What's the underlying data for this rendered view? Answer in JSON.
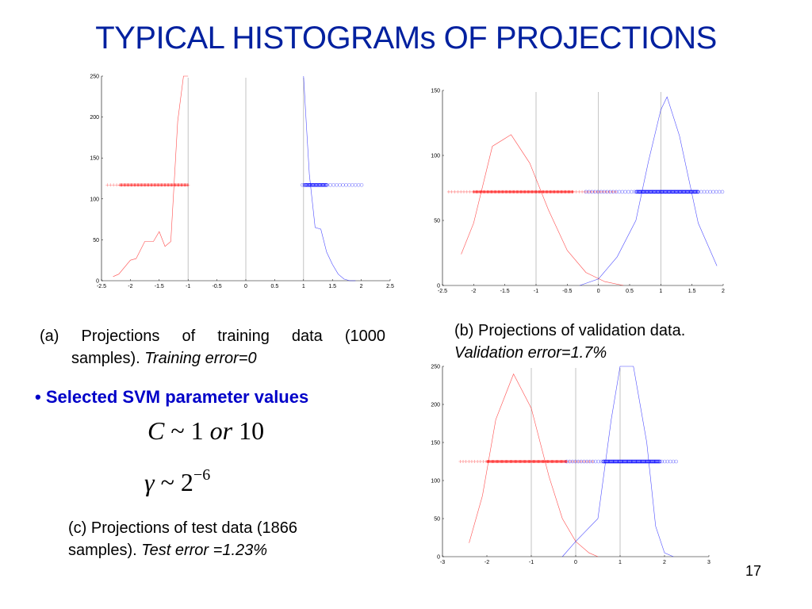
{
  "title": "TYPICAL HISTOGRAMs OF PROJECTIONS",
  "captions": {
    "a_line1": "(a) Projections of training data (1000",
    "a_line2_plain": "samples). ",
    "a_line2_italic": "Training error=0",
    "b_line1": "(b) Projections of validation data.",
    "b_line2_italic": "Validation error=1.7%",
    "c_line1": "(c) Projections of test data (1866",
    "c_line2_plain": "samples). ",
    "c_line2_italic": "Test error =1.23%"
  },
  "bullet": {
    "symbol": "•",
    "text": "Selected SVM parameter values"
  },
  "formulas": {
    "C_var": "C",
    "C_rest": " ~ 1 ",
    "C_or": "or",
    "C_ten": " 10",
    "gamma_var": "γ",
    "gamma_rest": " ~ 2",
    "gamma_exp": "−6"
  },
  "page_number": "17",
  "colors": {
    "title": "#00209f",
    "bullet": "#0000c8",
    "class_neg": "#ff0000",
    "class_pos": "#0000ff",
    "reference_lines": "#b4b4b4"
  },
  "chart_data": [
    {
      "id": "a",
      "type": "line",
      "xlim": [
        -2.5,
        2.5
      ],
      "ylim": [
        0,
        250
      ],
      "xticks": [
        -2.5,
        -2,
        -1.5,
        -1,
        -0.5,
        0,
        0.5,
        1,
        1.5,
        2,
        2.5
      ],
      "yticks": [
        0,
        50,
        100,
        150,
        200,
        250
      ],
      "vlines": [
        -1,
        0,
        1
      ],
      "points_y": 117,
      "series": [
        {
          "color": "#ff0000",
          "x": [
            -2.3,
            -2.2,
            -2.0,
            -1.9,
            -1.75,
            -1.6,
            -1.5,
            -1.4,
            -1.3,
            -1.18,
            -1.08,
            -1.0
          ],
          "y": [
            5,
            8,
            25,
            27,
            48,
            48,
            60,
            42,
            48,
            195,
            250,
            250
          ]
        },
        {
          "color": "#0000ff",
          "x": [
            1.0,
            1.05,
            1.1,
            1.2,
            1.3,
            1.4,
            1.5,
            1.6,
            1.7,
            1.8,
            1.9
          ],
          "y": [
            250,
            190,
            130,
            65,
            63,
            35,
            20,
            8,
            2,
            0,
            0
          ]
        }
      ],
      "scatter": [
        {
          "color": "#ff0000",
          "marker": "plus",
          "from": -2.4,
          "to": -0.98,
          "dense_from": -2.2,
          "dense_to": -1.0
        },
        {
          "color": "#0000ff",
          "marker": "circle",
          "from": 0.98,
          "to": 2.05,
          "dense_from": 1.0,
          "dense_to": 1.4
        }
      ]
    },
    {
      "id": "b",
      "type": "line",
      "xlim": [
        -2.5,
        2
      ],
      "ylim": [
        0,
        150
      ],
      "xticks": [
        -2.5,
        -2,
        -1.5,
        -1,
        -0.5,
        0,
        0.5,
        1,
        1.5,
        2
      ],
      "yticks": [
        0,
        50,
        100,
        150
      ],
      "vlines": [
        -1,
        0,
        1
      ],
      "points_y": 72,
      "series": [
        {
          "color": "#ff0000",
          "x": [
            -2.2,
            -2.0,
            -1.7,
            -1.4,
            -1.1,
            -0.8,
            -0.5,
            -0.2,
            0.1,
            0.4
          ],
          "y": [
            24,
            48,
            107,
            116,
            94,
            58,
            27,
            10,
            3,
            0
          ]
        },
        {
          "color": "#0000ff",
          "x": [
            -0.3,
            0.0,
            0.3,
            0.6,
            0.8,
            1.0,
            1.1,
            1.3,
            1.6,
            1.9
          ],
          "y": [
            0,
            5,
            22,
            50,
            95,
            135,
            145,
            115,
            48,
            15
          ]
        }
      ],
      "scatter": [
        {
          "color": "#ff0000",
          "marker": "plus",
          "from": -2.4,
          "to": 0.3,
          "dense_from": -2.0,
          "dense_to": -0.4
        },
        {
          "color": "#0000ff",
          "marker": "circle",
          "from": -0.2,
          "to": 2.0,
          "dense_from": 0.6,
          "dense_to": 1.6
        }
      ]
    },
    {
      "id": "c",
      "type": "line",
      "xlim": [
        -3,
        3
      ],
      "ylim": [
        0,
        250
      ],
      "xticks": [
        -3,
        -2,
        -1,
        0,
        1,
        2,
        3
      ],
      "yticks": [
        0,
        50,
        100,
        150,
        200,
        250
      ],
      "vlines": [
        -1,
        0,
        1
      ],
      "points_y": 125,
      "series": [
        {
          "color": "#ff0000",
          "x": [
            -2.4,
            -2.1,
            -1.8,
            -1.4,
            -1.0,
            -0.6,
            -0.3,
            0.0,
            0.3,
            0.5
          ],
          "y": [
            18,
            80,
            180,
            240,
            195,
            105,
            50,
            20,
            5,
            0
          ]
        },
        {
          "color": "#0000ff",
          "x": [
            -0.3,
            0.0,
            0.5,
            0.8,
            1.0,
            1.3,
            1.6,
            1.8,
            2.0,
            2.2
          ],
          "y": [
            0,
            20,
            50,
            180,
            250,
            250,
            150,
            40,
            5,
            0
          ]
        }
      ],
      "scatter": [
        {
          "color": "#ff0000",
          "marker": "plus",
          "from": -2.6,
          "to": 0.4,
          "dense_from": -2.0,
          "dense_to": -0.2
        },
        {
          "color": "#0000ff",
          "marker": "circle",
          "from": -0.2,
          "to": 2.3,
          "dense_from": 0.6,
          "dense_to": 1.9
        }
      ]
    }
  ]
}
